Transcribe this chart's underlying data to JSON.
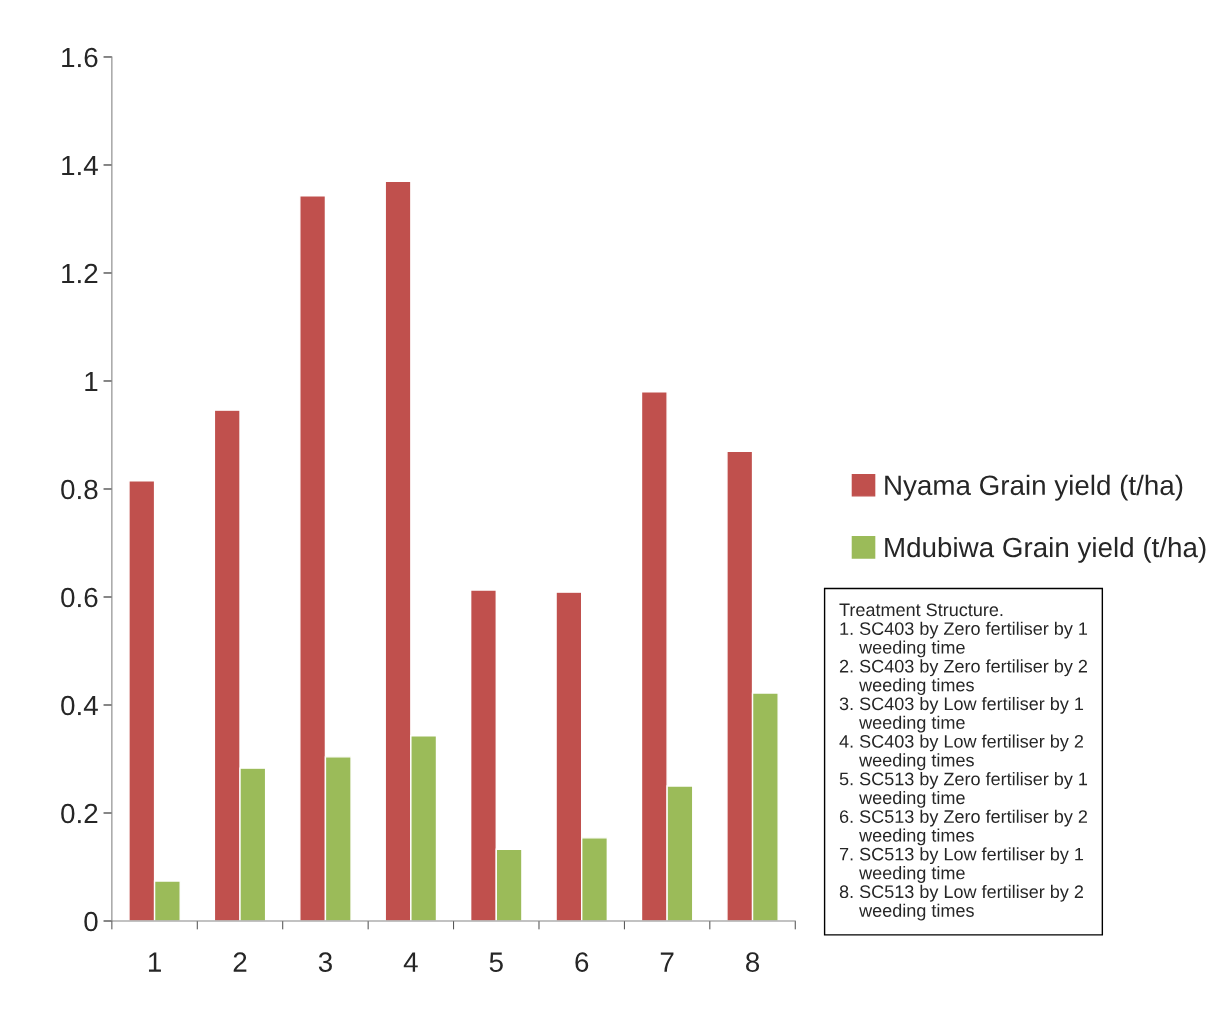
{
  "chart_data": {
    "type": "bar",
    "categories": [
      "1",
      "2",
      "3",
      "4",
      "5",
      "6",
      "7",
      "8"
    ],
    "series": [
      {
        "name": "Nyama Grain yield (t/ha)",
        "color": "#c0504d",
        "values": [
          0.815,
          0.946,
          1.343,
          1.37,
          0.613,
          0.609,
          0.98,
          0.87
        ]
      },
      {
        "name": "Mdubiwa Grain yield (t/ha)",
        "color": "#9bbb59",
        "values": [
          0.074,
          0.283,
          0.304,
          0.343,
          0.133,
          0.154,
          0.25,
          0.422
        ]
      }
    ],
    "ylim": [
      0,
      1.6
    ],
    "yticks": [
      0,
      0.2,
      0.4,
      0.6,
      0.8,
      1,
      1.2,
      1.4,
      1.6
    ],
    "grid": false,
    "legend": "right",
    "annotations": [
      "Treatment Structure.\n1. SC403 by Zero fertiliser by 1\n    weeding time\n2. SC403 by Zero fertiliser by 2\n    weeding times\n3. SC403 by Low fertiliser by 1\n    weeding time\n4. SC403 by Low fertiliser by 2\n    weeding times\n5. SC513 by Zero fertiliser by 1\n    weeding time\n6. SC513 by Zero fertiliser by 2\n    weeding times\n7. SC513 by Low fertiliser by 1\n    weeding time\n8. SC513 by Low fertiliser by 2\n    weeding times"
    ]
  }
}
